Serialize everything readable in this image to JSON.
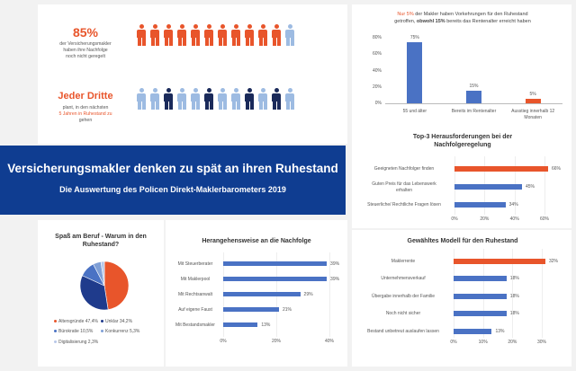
{
  "colors": {
    "orange": "#e8552b",
    "blue": "#4a72c4",
    "navy": "#0f3d91",
    "lightblue": "#9dbbe2",
    "dark": "#1a2a5a"
  },
  "infographic": {
    "stat1": {
      "value": "85%",
      "note_lines": [
        "der Versicherungsmakler",
        "haben ihre Nachfolge",
        "noch nicht geregelt"
      ],
      "people": [
        "orange",
        "orange",
        "orange",
        "orange",
        "orange",
        "orange",
        "orange",
        "orange",
        "orange",
        "orange",
        "orange",
        "lightblue"
      ]
    },
    "stat2": {
      "value": "Jeder Dritte",
      "note_lines": [
        "plant, in den nächsten",
        "5 Jahren in Ruhestand zu",
        "gehen"
      ],
      "people": [
        "lightblue",
        "lightblue",
        "dark",
        "lightblue",
        "lightblue",
        "dark",
        "lightblue",
        "lightblue",
        "dark",
        "lightblue",
        "dark",
        "lightblue"
      ]
    }
  },
  "banner": {
    "title": "Versicherungsmakler denken zu spät an ihren Ruhestand",
    "subtitle": "Die Auswertung des Policen Direkt-Maklerbarometers 2019"
  },
  "charts": {
    "pie": {
      "title_lines": [
        "Spaß am Beruf - Warum in den",
        "Ruhestand?"
      ]
    },
    "horizontal1": {
      "title": "Herangehensweise an die Nachfolge"
    },
    "top_bar": {
      "title_parts": {
        "highlight": "Nur 5%",
        "rest1": " der Makler haben Vorkehrungen für den Ruhestand",
        "line2a": "getroffen, ",
        "bold": "obwohl  15%",
        "line2b": " bereits das Rentenalter erreicht haben"
      }
    },
    "top3": {
      "title_lines": [
        "Top-3 Herausforderungen bei der",
        "Nachfolgeregelung"
      ]
    },
    "model": {
      "title": "Gewähltes Modell für den Ruhestand"
    }
  },
  "chart_data": [
    {
      "type": "pie",
      "title": "Spaß am Beruf - Warum in den Ruhestand?",
      "labels": [
        "Altersgründe 47,4%",
        "Unklar 34,2%",
        "Bürokratie 10,5%",
        "Konkurrenz 5,3%",
        "Digitalisierung 2,3%"
      ],
      "values": [
        47.4,
        34.2,
        10.5,
        5.3,
        2.3
      ],
      "colors": [
        "#e8552b",
        "#1f3b8c",
        "#4a72c4",
        "#7f9fd6",
        "#b7c7e8"
      ]
    },
    {
      "type": "bar",
      "orientation": "horizontal",
      "title": "Herangehensweise an die Nachfolge",
      "categories": [
        "Mit Steuerberater",
        "Mit Maklerpool",
        "Mit Rechtsanwalt",
        "Auf eigene Faust",
        "Mit Bestandsmakler"
      ],
      "values": [
        39,
        39,
        29,
        21,
        13
      ],
      "value_labels": [
        "39%",
        "39%",
        "29%",
        "21%",
        "13%"
      ],
      "xlim": [
        0,
        40
      ],
      "ticks": [
        "0%",
        "20%",
        "40%"
      ]
    },
    {
      "type": "bar",
      "title": "Nur 5% der Makler haben Vorkehrungen für den Ruhestand getroffen, obwohl 15% bereits das Rentenalter erreicht haben",
      "categories": [
        "55 und älter",
        "Bereits im Rentenalter",
        "Ausstieg innerhalb 12 Monaten"
      ],
      "category_lines": [
        [
          "55 und älter"
        ],
        [
          "Bereits im Rentenalter"
        ],
        [
          "Ausstieg innerhalb 12",
          "Monaten"
        ]
      ],
      "values": [
        75,
        15,
        5
      ],
      "value_labels": [
        "75%",
        "15%",
        "5%"
      ],
      "ylim": [
        0,
        80
      ],
      "ticks": [
        "0%",
        "20%",
        "40%",
        "60%",
        "80%"
      ],
      "bar_colors": [
        "#4a72c4",
        "#4a72c4",
        "#e8552b"
      ]
    },
    {
      "type": "bar",
      "orientation": "horizontal",
      "title": "Top-3 Herausforderungen bei der Nachfolgeregelung",
      "categories": [
        "Geeigneten Nachfolger finden",
        "Guten Preis für das Lebenswerk erhalten",
        "Steuerliche/ Rechtliche Fragen lösen"
      ],
      "category_lines": [
        [
          "Geeigneten Nachfolger finden"
        ],
        [
          "Guten Preis für das Lebenswerk",
          "erhalten"
        ],
        [
          "Steuerliche/ Rechtliche Fragen lösen"
        ]
      ],
      "values": [
        66,
        45,
        34
      ],
      "value_labels": [
        "66%",
        "45%",
        "34%"
      ],
      "xlim": [
        0,
        60
      ],
      "ticks": [
        "0%",
        "20%",
        "40%",
        "60%"
      ],
      "bar_colors": [
        "#e8552b",
        "#4a72c4",
        "#4a72c4"
      ]
    },
    {
      "type": "bar",
      "orientation": "horizontal",
      "title": "Gewähltes Modell für den Ruhestand",
      "categories": [
        "Maklerrente",
        "Unternehmensverkauf",
        "Übergabe innerhalb der Familie",
        "Noch nicht sicher",
        "Bestand unbetreut auslaufen lassen"
      ],
      "values": [
        32,
        18,
        18,
        18,
        13
      ],
      "value_labels": [
        "32%",
        "18%",
        "18%",
        "18%",
        "13%"
      ],
      "xlim": [
        0,
        30
      ],
      "ticks": [
        "0%",
        "10%",
        "20%",
        "30%"
      ],
      "bar_colors": [
        "#e8552b",
        "#4a72c4",
        "#4a72c4",
        "#4a72c4",
        "#4a72c4"
      ]
    }
  ]
}
